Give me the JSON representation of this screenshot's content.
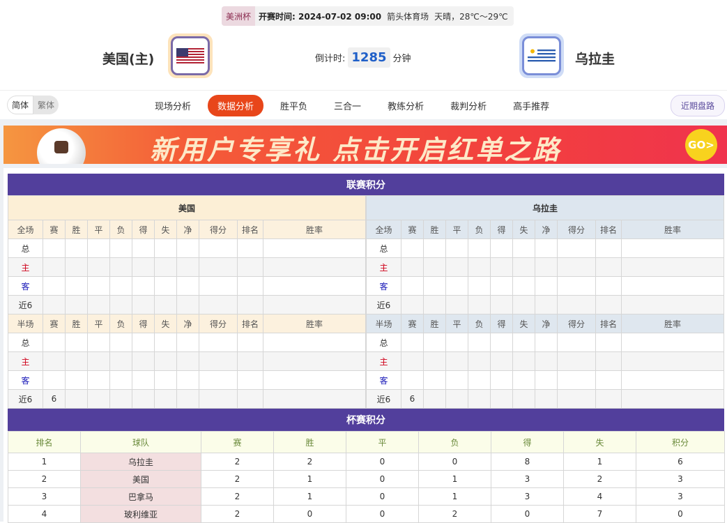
{
  "match": {
    "competition": "美洲杯",
    "kickoff_label": "开赛时间: 2024-07-02 09:00",
    "venue": "箭头体育场",
    "weather": "天晴，28℃～29℃",
    "home": "美国(主)",
    "away": "乌拉圭",
    "countdown_label": "倒计时:",
    "countdown_value": "1285",
    "countdown_unit": "分钟"
  },
  "nav": {
    "lang": [
      "简体",
      "繁体"
    ],
    "tabs": [
      "现场分析",
      "数据分析",
      "胜平负",
      "三合一",
      "教练分析",
      "裁判分析",
      "高手推荐"
    ],
    "active_tab": "数据分析",
    "recent": "近期盘路"
  },
  "banner": {
    "text": "新用户专享礼  点击开启红单之路",
    "go": "GO>"
  },
  "league": {
    "title": "联赛积分",
    "home_team": "美国",
    "away_team": "乌拉圭",
    "full_header": [
      "全场",
      "赛",
      "胜",
      "平",
      "负",
      "得",
      "失",
      "净",
      "得分",
      "排名",
      "胜率"
    ],
    "half_header": [
      "半场",
      "赛",
      "胜",
      "平",
      "负",
      "得",
      "失",
      "净",
      "得分",
      "排名",
      "胜率"
    ],
    "home_full": [
      [
        "总",
        "",
        "",
        "",
        "",
        "",
        "",
        "",
        "",
        "",
        ""
      ],
      [
        "主",
        "",
        "",
        "",
        "",
        "",
        "",
        "",
        "",
        "",
        ""
      ],
      [
        "客",
        "",
        "",
        "",
        "",
        "",
        "",
        "",
        "",
        "",
        ""
      ],
      [
        "近6",
        "",
        "",
        "",
        "",
        "",
        "",
        "",
        "",
        "",
        ""
      ]
    ],
    "home_half": [
      [
        "总",
        "",
        "",
        "",
        "",
        "",
        "",
        "",
        "",
        "",
        ""
      ],
      [
        "主",
        "",
        "",
        "",
        "",
        "",
        "",
        "",
        "",
        "",
        ""
      ],
      [
        "客",
        "",
        "",
        "",
        "",
        "",
        "",
        "",
        "",
        "",
        ""
      ],
      [
        "近6",
        "6",
        "",
        "",
        "",
        "",
        "",
        "",
        "",
        "",
        ""
      ]
    ],
    "away_full": [
      [
        "总",
        "",
        "",
        "",
        "",
        "",
        "",
        "",
        "",
        "",
        ""
      ],
      [
        "主",
        "",
        "",
        "",
        "",
        "",
        "",
        "",
        "",
        "",
        ""
      ],
      [
        "客",
        "",
        "",
        "",
        "",
        "",
        "",
        "",
        "",
        "",
        ""
      ],
      [
        "近6",
        "",
        "",
        "",
        "",
        "",
        "",
        "",
        "",
        "",
        ""
      ]
    ],
    "away_half": [
      [
        "总",
        "",
        "",
        "",
        "",
        "",
        "",
        "",
        "",
        "",
        ""
      ],
      [
        "主",
        "",
        "",
        "",
        "",
        "",
        "",
        "",
        "",
        "",
        ""
      ],
      [
        "客",
        "",
        "",
        "",
        "",
        "",
        "",
        "",
        "",
        "",
        ""
      ],
      [
        "近6",
        "6",
        "",
        "",
        "",
        "",
        "",
        "",
        "",
        "",
        ""
      ]
    ]
  },
  "cup": {
    "title": "杯赛积分",
    "header": [
      "排名",
      "球队",
      "赛",
      "胜",
      "平",
      "负",
      "得",
      "失",
      "积分"
    ],
    "rows": [
      [
        "1",
        "乌拉圭",
        "2",
        "2",
        "0",
        "0",
        "8",
        "1",
        "6"
      ],
      [
        "2",
        "美国",
        "2",
        "1",
        "0",
        "1",
        "3",
        "2",
        "3"
      ],
      [
        "3",
        "巴拿马",
        "2",
        "1",
        "0",
        "1",
        "3",
        "4",
        "3"
      ],
      [
        "4",
        "玻利维亚",
        "2",
        "0",
        "0",
        "2",
        "0",
        "7",
        "0"
      ]
    ]
  },
  "colors": {
    "accent": "#523f9c",
    "active_tab": "#e8461a",
    "home": "#d0021b",
    "away": "#1a1ab8"
  }
}
